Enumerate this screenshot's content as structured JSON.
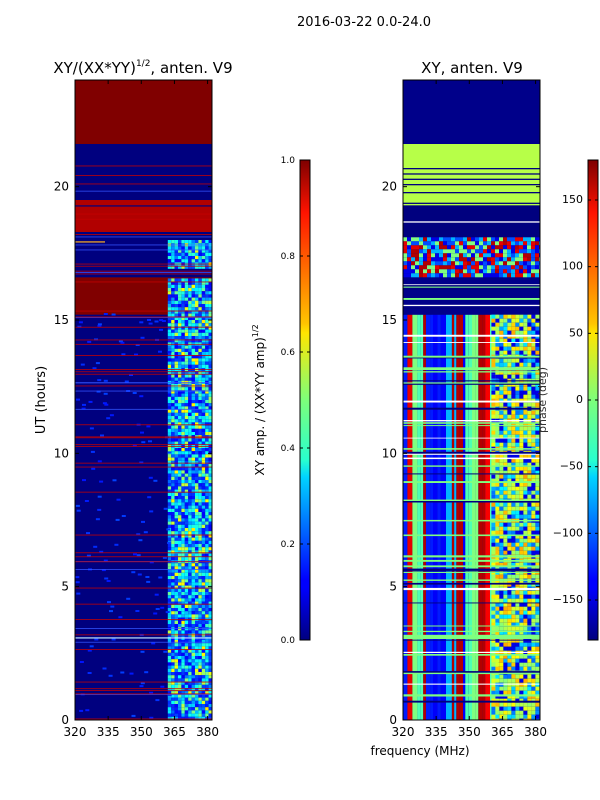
{
  "figure": {
    "suptitle": "2016-03-22 0.0-24.0",
    "xlabel": "frequency (MHz)"
  },
  "colors": {
    "dark_red": "#7f0000",
    "dark_blue": "#00007f",
    "blue": "#0000ff",
    "cyan": "#00ffff",
    "green": "#7fff7f",
    "yellow": "#ffff00",
    "red": "#ff0000",
    "frame": "#000000"
  },
  "chart_data": [
    {
      "type": "heatmap",
      "title_main": "XY/(XX*YY)",
      "title_sup": "1/2",
      "title_suffix": ", anten. V9",
      "xlabel": "",
      "ylabel": "UT (hours)",
      "xlim": [
        320,
        382
      ],
      "ylim": [
        0,
        24
      ],
      "xticks": [
        320,
        335,
        350,
        365,
        380
      ],
      "yticks": [
        0,
        5,
        10,
        15,
        20
      ],
      "colorbar": {
        "label_main": "XY amp. / (XX*YY amp)",
        "label_sup": "1/2",
        "range": [
          0.0,
          1.0
        ],
        "ticks": [
          "0.0",
          "0.2",
          "0.4",
          "0.6",
          "0.8",
          "1.0"
        ],
        "tick_values": [
          0.0,
          0.2,
          0.4,
          0.6,
          0.8,
          1.0
        ]
      },
      "bands": [
        {
          "from": 21.6,
          "to": 24.0,
          "value": 1.0
        },
        {
          "from": 15.2,
          "to": 16.6,
          "value": 1.0
        },
        {
          "from": 18.3,
          "to": 19.5,
          "value": 0.95
        }
      ]
    },
    {
      "type": "heatmap",
      "title_main": "XY, anten. V9",
      "title_sup": "",
      "title_suffix": "",
      "xlabel": "",
      "ylabel": "",
      "xlim": [
        320,
        382
      ],
      "ylim": [
        0,
        24
      ],
      "xticks": [
        320,
        335,
        350,
        365,
        380
      ],
      "yticks": [
        0,
        5,
        10,
        15,
        20
      ],
      "colorbar": {
        "label_main": "phase (deg)",
        "label_sup": "",
        "range": [
          -180,
          180
        ],
        "ticks": [
          "150",
          "100",
          "50",
          "0",
          "−50",
          "−100",
          "−150"
        ],
        "tick_values": [
          150,
          100,
          50,
          0,
          -50,
          -100,
          -150
        ]
      },
      "bands": [
        {
          "from": 21.6,
          "to": 24.0,
          "value": -180
        },
        {
          "from": 19.3,
          "to": 21.6,
          "value": 20
        },
        {
          "from": 15.2,
          "to": 16.6,
          "value": -180
        }
      ]
    }
  ]
}
